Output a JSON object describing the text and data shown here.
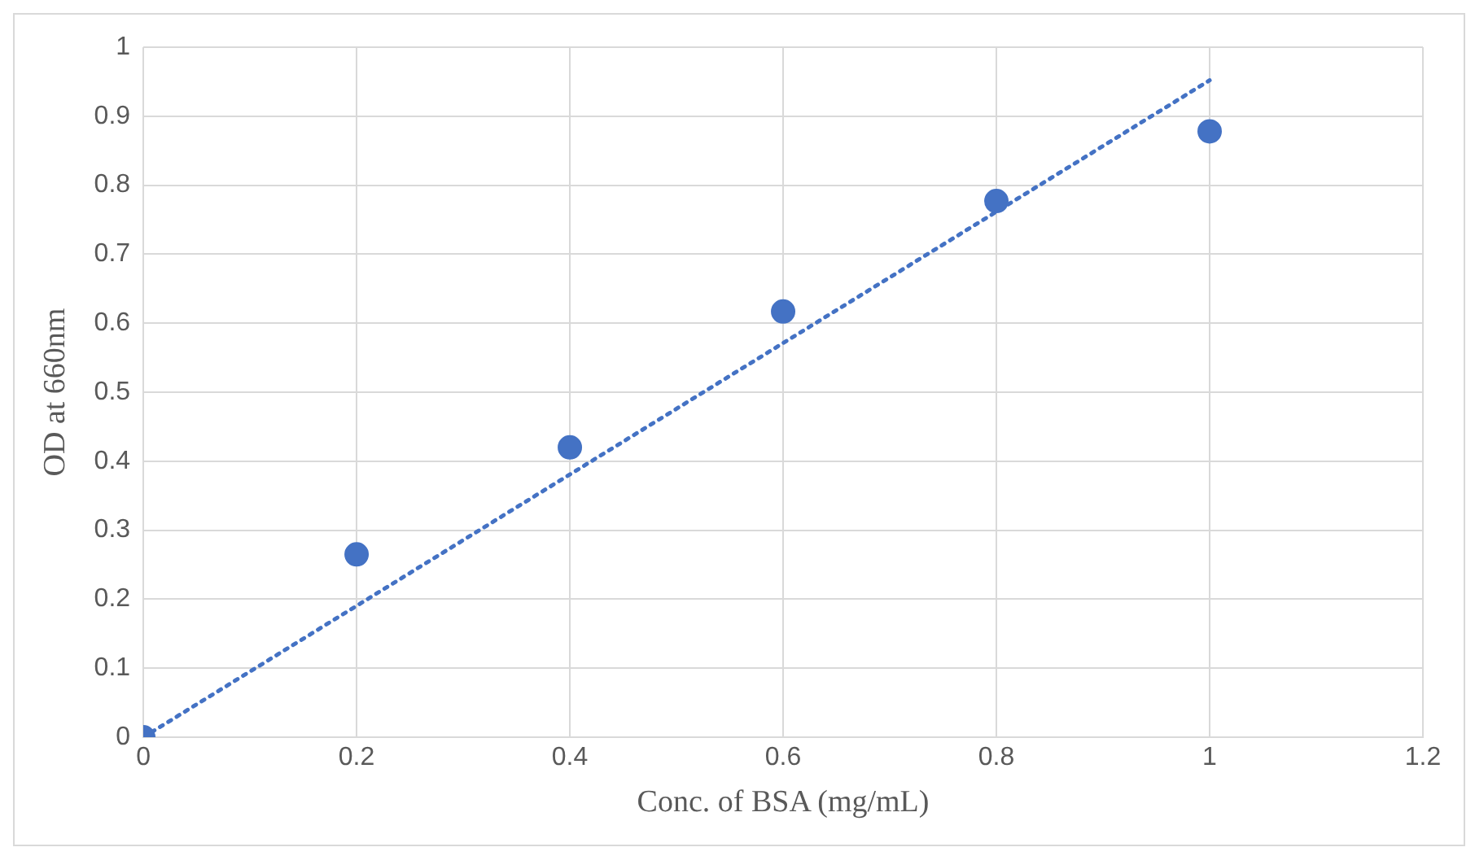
{
  "chart_data": {
    "type": "scatter",
    "xlabel": "Conc. of BSA (mg/mL)",
    "ylabel": "OD at 660nm",
    "x": [
      0,
      0.2,
      0.4,
      0.6,
      0.8,
      1
    ],
    "series": [
      {
        "color": "#4472c4",
        "values": [
          0,
          0.265,
          0.42,
          0.617,
          0.777,
          0.878
        ],
        "marker": "circle"
      },
      {
        "type": "line",
        "color": "#4472c4",
        "x": [
          0,
          1
        ],
        "values": [
          0,
          0.952
        ],
        "line_style": "dotted",
        "marker": "none"
      }
    ],
    "xlim": [
      0,
      1.2
    ],
    "xticks": [
      0,
      0.2,
      0.4,
      0.6,
      0.8,
      1,
      1.2
    ],
    "ylim": [
      0,
      1
    ],
    "yticks": [
      0,
      0.1,
      0.2,
      0.3,
      0.4,
      0.5,
      0.6,
      0.7,
      0.8,
      0.9,
      1
    ],
    "grid": true,
    "legend": false
  }
}
